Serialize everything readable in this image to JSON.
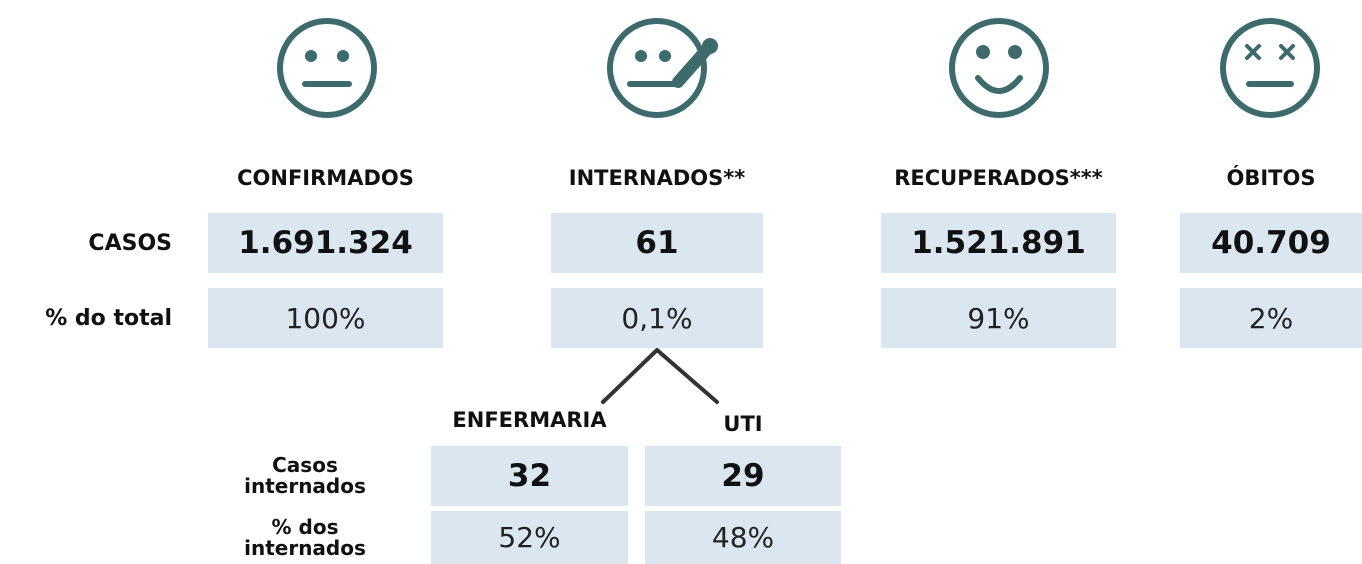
{
  "columns": [
    {
      "title": "CONFIRMADOS",
      "casos": "1.691.324",
      "pct": "100%"
    },
    {
      "title": "INTERNADOS**",
      "casos": "61",
      "pct": "0,1%"
    },
    {
      "title": "RECUPERADOS***",
      "casos": "1.521.891",
      "pct": "91%"
    },
    {
      "title": "ÓBITOS",
      "casos": "40.709",
      "pct": "2%"
    }
  ],
  "row_labels": {
    "casos": "CASOS",
    "pct": "% do total"
  },
  "breakdown": {
    "columns": [
      {
        "title": "ENFERMARIA",
        "casos": "32",
        "pct": "52%"
      },
      {
        "title": "UTI",
        "casos": "29",
        "pct": "48%"
      }
    ],
    "row_labels": {
      "casos": [
        "Casos",
        "internados"
      ],
      "pct": [
        "% dos",
        "internados"
      ]
    }
  }
}
